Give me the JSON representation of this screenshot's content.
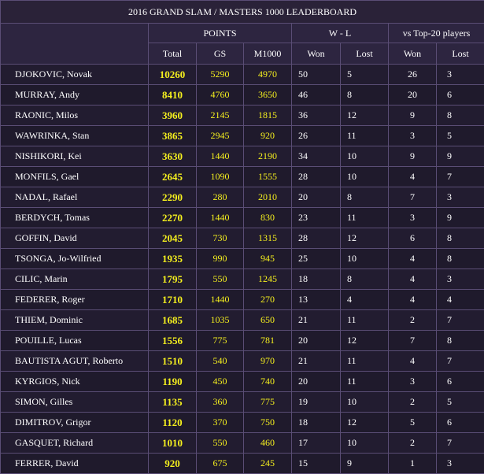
{
  "title": "2016 GRAND SLAM / MASTERS 1000 LEADERBOARD",
  "groups": {
    "points": "POINTS",
    "wl": "W - L",
    "top20": "vs Top-20 players"
  },
  "columns": {
    "total": "Total",
    "gs": "GS",
    "m1000": "M1000",
    "won": "Won",
    "lost": "Lost",
    "top20_won": "Won",
    "top20_lost": "Lost"
  },
  "players": [
    {
      "name": "DJOKOVIC, Novak",
      "total": "10260",
      "gs": "5290",
      "m1000": "4970",
      "won": "50",
      "lost": "5",
      "t20_won": "26",
      "t20_lost": "3"
    },
    {
      "name": "MURRAY, Andy",
      "total": "8410",
      "gs": "4760",
      "m1000": "3650",
      "won": "46",
      "lost": "8",
      "t20_won": "20",
      "t20_lost": "6"
    },
    {
      "name": "RAONIC, Milos",
      "total": "3960",
      "gs": "2145",
      "m1000": "1815",
      "won": "36",
      "lost": "12",
      "t20_won": "9",
      "t20_lost": "8"
    },
    {
      "name": "WAWRINKA, Stan",
      "total": "3865",
      "gs": "2945",
      "m1000": "920",
      "won": "26",
      "lost": "11",
      "t20_won": "3",
      "t20_lost": "5"
    },
    {
      "name": "NISHIKORI, Kei",
      "total": "3630",
      "gs": "1440",
      "m1000": "2190",
      "won": "34",
      "lost": "10",
      "t20_won": "9",
      "t20_lost": "9"
    },
    {
      "name": "MONFILS, Gael",
      "total": "2645",
      "gs": "1090",
      "m1000": "1555",
      "won": "28",
      "lost": "10",
      "t20_won": "4",
      "t20_lost": "7"
    },
    {
      "name": "NADAL, Rafael",
      "total": "2290",
      "gs": "280",
      "m1000": "2010",
      "won": "20",
      "lost": "8",
      "t20_won": "7",
      "t20_lost": "3"
    },
    {
      "name": "BERDYCH, Tomas",
      "total": "2270",
      "gs": "1440",
      "m1000": "830",
      "won": "23",
      "lost": "11",
      "t20_won": "3",
      "t20_lost": "9"
    },
    {
      "name": "GOFFIN, David",
      "total": "2045",
      "gs": "730",
      "m1000": "1315",
      "won": "28",
      "lost": "12",
      "t20_won": "6",
      "t20_lost": "8"
    },
    {
      "name": "TSONGA, Jo-Wilfried",
      "total": "1935",
      "gs": "990",
      "m1000": "945",
      "won": "25",
      "lost": "10",
      "t20_won": "4",
      "t20_lost": "8"
    },
    {
      "name": "CILIC, Marin",
      "total": "1795",
      "gs": "550",
      "m1000": "1245",
      "won": "18",
      "lost": "8",
      "t20_won": "4",
      "t20_lost": "3"
    },
    {
      "name": "FEDERER, Roger",
      "total": "1710",
      "gs": "1440",
      "m1000": "270",
      "won": "13",
      "lost": "4",
      "t20_won": "4",
      "t20_lost": "4"
    },
    {
      "name": "THIEM, Dominic",
      "total": "1685",
      "gs": "1035",
      "m1000": "650",
      "won": "21",
      "lost": "11",
      "t20_won": "2",
      "t20_lost": "7"
    },
    {
      "name": "POUILLE, Lucas",
      "total": "1556",
      "gs": "775",
      "m1000": "781",
      "won": "20",
      "lost": "12",
      "t20_won": "7",
      "t20_lost": "8"
    },
    {
      "name": "BAUTISTA AGUT, Roberto",
      "total": "1510",
      "gs": "540",
      "m1000": "970",
      "won": "21",
      "lost": "11",
      "t20_won": "4",
      "t20_lost": "7"
    },
    {
      "name": "KYRGIOS, Nick",
      "total": "1190",
      "gs": "450",
      "m1000": "740",
      "won": "20",
      "lost": "11",
      "t20_won": "3",
      "t20_lost": "6"
    },
    {
      "name": "SIMON, Gilles",
      "total": "1135",
      "gs": "360",
      "m1000": "775",
      "won": "19",
      "lost": "10",
      "t20_won": "2",
      "t20_lost": "5"
    },
    {
      "name": "DIMITROV, Grigor",
      "total": "1120",
      "gs": "370",
      "m1000": "750",
      "won": "18",
      "lost": "12",
      "t20_won": "5",
      "t20_lost": "6"
    },
    {
      "name": "GASQUET, Richard",
      "total": "1010",
      "gs": "550",
      "m1000": "460",
      "won": "17",
      "lost": "10",
      "t20_won": "2",
      "t20_lost": "7"
    },
    {
      "name": "FERRER, David",
      "total": "920",
      "gs": "675",
      "m1000": "245",
      "won": "15",
      "lost": "9",
      "t20_won": "1",
      "t20_lost": "3"
    }
  ]
}
